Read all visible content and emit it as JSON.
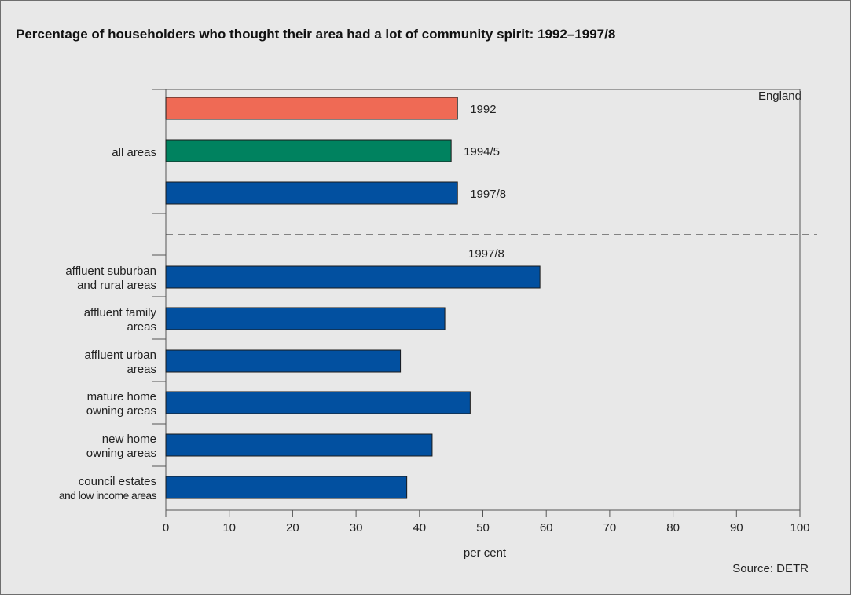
{
  "title": "Percentage of householders who thought their area had a lot of community spirit: 1992–1997/8",
  "region_label": "England",
  "source_label": "Source: DETR",
  "colors": {
    "1992": "#ef6a55",
    "1994/5": "#00825f",
    "1997/8": "#0250a0",
    "axis": "#555555",
    "divider": "#444444"
  },
  "chart_data": {
    "type": "bar",
    "orientation": "horizontal",
    "xlabel": "per cent",
    "xlim": [
      0,
      100
    ],
    "xticks": [
      0,
      10,
      20,
      30,
      40,
      50,
      60,
      70,
      80,
      90,
      100
    ],
    "grid": false,
    "groups": [
      {
        "category": "all areas",
        "bars": [
          {
            "series": "1992",
            "value": 46,
            "label": "1992"
          },
          {
            "series": "1994/5",
            "value": 45,
            "label": "1994/5"
          },
          {
            "series": "1997/8",
            "value": 46,
            "label": "1997/8"
          }
        ]
      }
    ],
    "section_label": "1997/8",
    "categories": [
      "affluent suburban and rural areas",
      "affluent family areas",
      "affluent urban areas",
      "mature home owning areas",
      "new home owning areas",
      "council estates and low income areas"
    ],
    "category_lines": [
      [
        "affluent suburban",
        "and rural areas"
      ],
      [
        "affluent family",
        "areas"
      ],
      [
        "affluent urban",
        "areas"
      ],
      [
        "mature home",
        "owning areas"
      ],
      [
        "new home",
        "owning areas"
      ],
      [
        "council estates",
        "and low income areas"
      ]
    ],
    "values": [
      59,
      44,
      37,
      48,
      42,
      38
    ],
    "series_name": "1997/8"
  }
}
